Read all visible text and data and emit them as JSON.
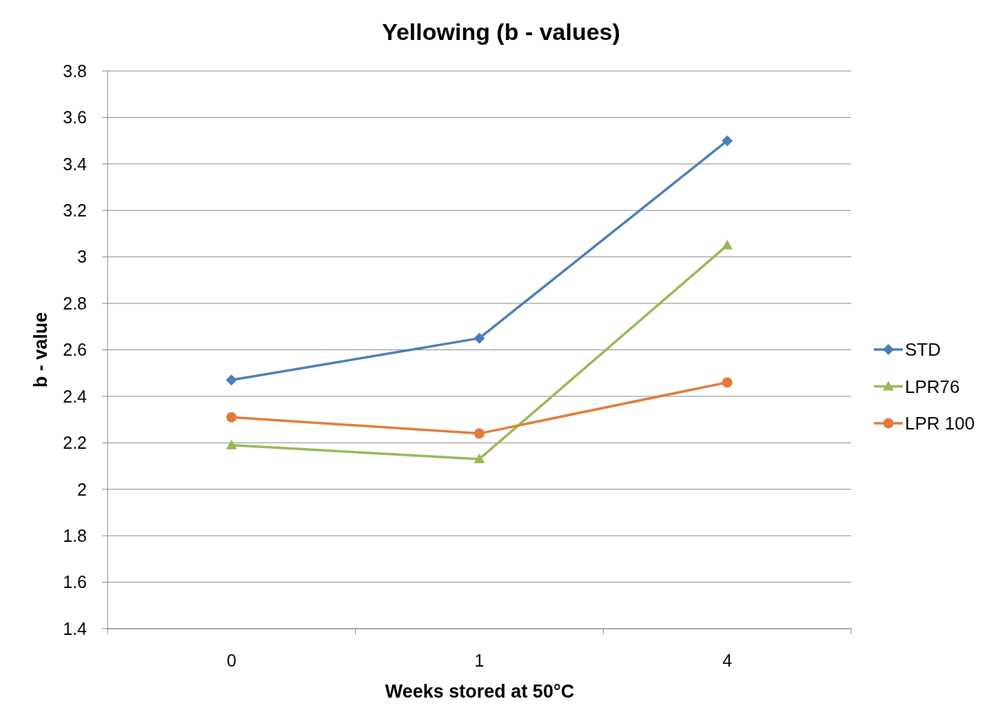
{
  "chart_data": {
    "type": "line",
    "title": "Yellowing (b - values)",
    "xlabel": "Weeks stored at 50°C",
    "ylabel": "b - value",
    "categories": [
      "0",
      "1",
      "4"
    ],
    "series": [
      {
        "name": "STD",
        "color": "#4a7ebb",
        "marker": "diamond",
        "values": [
          2.47,
          2.65,
          3.5
        ]
      },
      {
        "name": "LPR76",
        "color": "#98b954",
        "marker": "triangle",
        "values": [
          2.19,
          2.13,
          3.05
        ]
      },
      {
        "name": "LPR 100",
        "color": "#e07b39",
        "marker": "circle",
        "values": [
          2.31,
          2.24,
          2.46
        ]
      }
    ],
    "ylim": [
      1.4,
      3.8
    ],
    "yticks": [
      1.4,
      1.6,
      1.8,
      2,
      2.2,
      2.4,
      2.6,
      2.8,
      3,
      3.2,
      3.4,
      3.6,
      3.8
    ],
    "grid": "y",
    "legend": "right",
    "line_style": "solid"
  }
}
